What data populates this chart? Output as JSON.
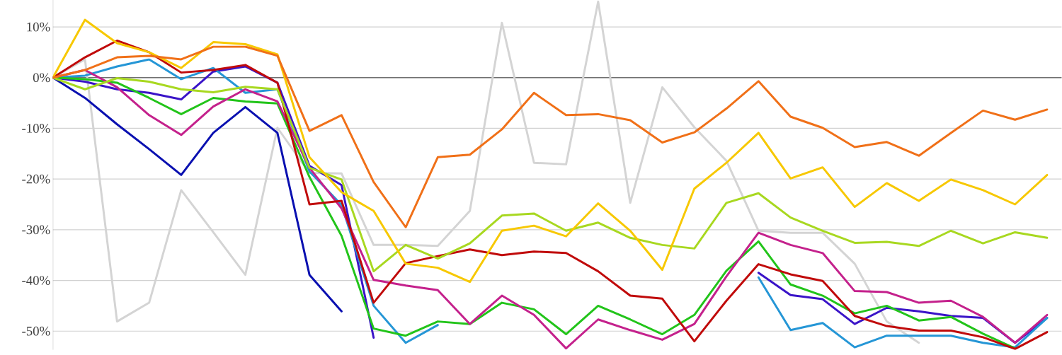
{
  "chart_data": {
    "type": "line",
    "marker": "none",
    "line_style": "solid",
    "grid": "y",
    "tick_labels": "y",
    "categories": [
      null,
      null,
      null,
      null,
      null,
      null,
      null,
      null,
      null,
      null,
      null,
      null,
      null,
      null,
      null,
      null,
      null,
      null,
      null,
      null,
      null,
      null,
      null,
      null,
      null,
      null,
      null,
      null,
      null,
      null,
      null,
      null
    ],
    "ylim": [
      -53.7,
      15.3
    ],
    "yticks": [
      {
        "value": 10,
        "label": "10%"
      },
      {
        "value": 0,
        "label": "0%"
      },
      {
        "value": -10,
        "label": "-10%"
      },
      {
        "value": -20,
        "label": "-20%"
      },
      {
        "value": -30,
        "label": "-30%"
      },
      {
        "value": -40,
        "label": "-40%"
      },
      {
        "value": -50,
        "label": "-50%"
      }
    ],
    "ref_lines": [
      {
        "axis": "y",
        "value": 0,
        "color": "#707070"
      }
    ],
    "series": [
      {
        "color": "#d4d4d4",
        "values": [
          0,
          3.6,
          -48.1,
          -44.4,
          -22.2,
          -30.5,
          -38.9,
          -9.9,
          -18.8,
          -18.9,
          -33.0,
          -33.0,
          -33.2,
          -26.3,
          10.8,
          -16.8,
          -17.1,
          15.0,
          -24.7,
          -1.9,
          -9.8,
          -16.4,
          -30.2,
          -30.6,
          -30.6,
          -36.7,
          -48.1,
          -52.3,
          null,
          null,
          null,
          null
        ]
      },
      {
        "color": "#0a10b0",
        "values": [
          0,
          -4.0,
          -9.2,
          -14.1,
          -19.2,
          -10.9,
          -5.8,
          -10.9,
          -38.9,
          -46.1,
          null,
          null,
          null,
          null,
          null,
          null,
          null,
          null,
          null,
          null,
          null,
          null,
          null,
          null,
          null,
          null,
          null,
          null,
          null,
          null,
          null,
          null
        ]
      },
      {
        "color": "#3a14c8",
        "values": [
          0,
          -0.8,
          -2.3,
          -3.0,
          -4.3,
          1.2,
          2.2,
          -1.0,
          -17.4,
          -21.2,
          -51.3,
          null,
          null,
          null,
          null,
          null,
          null,
          null,
          null,
          null,
          null,
          null,
          -38.5,
          -42.9,
          -43.7,
          -48.6,
          -45.4,
          -46.1,
          -47.0,
          -47.4,
          -52.3,
          -47.4
        ]
      },
      {
        "color": "#2596d6",
        "values": [
          0,
          0.4,
          2.2,
          3.6,
          -0.3,
          1.9,
          -3.0,
          -2.3,
          -18.5,
          -25.1,
          -45.0,
          -52.3,
          -48.8,
          null,
          null,
          null,
          null,
          null,
          null,
          null,
          null,
          null,
          -39.4,
          -49.8,
          -48.4,
          -53.2,
          -50.9,
          -50.9,
          -50.9,
          -52.3,
          -53.2,
          -47.4
        ]
      },
      {
        "color": "#22c41a",
        "values": [
          0,
          -0.3,
          -1.0,
          -4.0,
          -7.2,
          -4.0,
          -4.7,
          -5.1,
          -19.6,
          -31.2,
          -49.5,
          -50.9,
          -48.1,
          -48.6,
          -44.4,
          -45.7,
          -50.6,
          -45.0,
          -47.7,
          -50.6,
          -46.8,
          -38.1,
          -32.3,
          -40.8,
          -43.0,
          -46.5,
          -45.0,
          -47.9,
          -47.2,
          -50.5,
          -53.4,
          null
        ]
      },
      {
        "color": "#c4218c",
        "values": [
          0,
          1.5,
          -1.9,
          -7.4,
          -11.3,
          -5.7,
          -2.3,
          -4.7,
          -17.8,
          -25.8,
          -39.9,
          -41.0,
          -41.9,
          -48.6,
          -43.0,
          -46.8,
          -53.4,
          -47.7,
          -49.8,
          -51.7,
          -48.6,
          -39.2,
          -30.6,
          -33.0,
          -34.6,
          -42.1,
          -42.3,
          -44.4,
          -44.0,
          -47.2,
          -52.3,
          -46.8
        ]
      },
      {
        "color": "#c00a0a",
        "values": [
          0,
          4.0,
          7.3,
          5.0,
          1.0,
          1.5,
          2.5,
          -1.0,
          -25.0,
          -24.3,
          -44.4,
          -36.6,
          -35.2,
          -33.9,
          -35.0,
          -34.3,
          -34.6,
          -38.2,
          -43.0,
          -43.6,
          -52.0,
          -44.0,
          -36.8,
          -38.8,
          -40.1,
          -47.0,
          -49.0,
          -49.9,
          -49.9,
          -51.2,
          -53.5,
          -50.2
        ]
      },
      {
        "color": "#a8d820",
        "values": [
          0,
          -2.3,
          -0.1,
          -0.8,
          -2.3,
          -2.9,
          -1.8,
          -2.3,
          -17.8,
          -20.1,
          -38.2,
          -33.0,
          -35.7,
          -32.7,
          -27.2,
          -26.8,
          -30.2,
          -28.6,
          -31.6,
          -33.0,
          -33.7,
          -24.7,
          -22.8,
          -27.6,
          -30.2,
          -32.6,
          -32.4,
          -33.2,
          -30.2,
          -32.7,
          -30.5,
          -31.6
        ]
      },
      {
        "color": "#f7c800",
        "values": [
          0,
          11.4,
          6.8,
          5.0,
          1.9,
          7.0,
          6.6,
          4.6,
          -15.7,
          -22.6,
          -26.3,
          -36.7,
          -37.5,
          -40.3,
          -30.2,
          -29.2,
          -31.3,
          -24.8,
          -30.2,
          -37.9,
          -21.9,
          -16.8,
          -10.9,
          -19.9,
          -17.7,
          -25.5,
          -20.8,
          -24.3,
          -20.1,
          -22.2,
          -25.0,
          -19.2
        ]
      },
      {
        "color": "#f07018",
        "values": [
          0,
          1.5,
          4.0,
          4.3,
          3.6,
          6.1,
          6.1,
          4.3,
          -10.5,
          -7.4,
          -20.6,
          -29.5,
          -15.7,
          -15.2,
          -10.2,
          -3.0,
          -7.4,
          -7.2,
          -8.4,
          -12.8,
          -10.8,
          -6.1,
          -0.7,
          -7.7,
          -9.9,
          -13.7,
          -12.7,
          -15.4,
          -10.9,
          -6.5,
          -8.3,
          -6.3
        ]
      }
    ]
  }
}
